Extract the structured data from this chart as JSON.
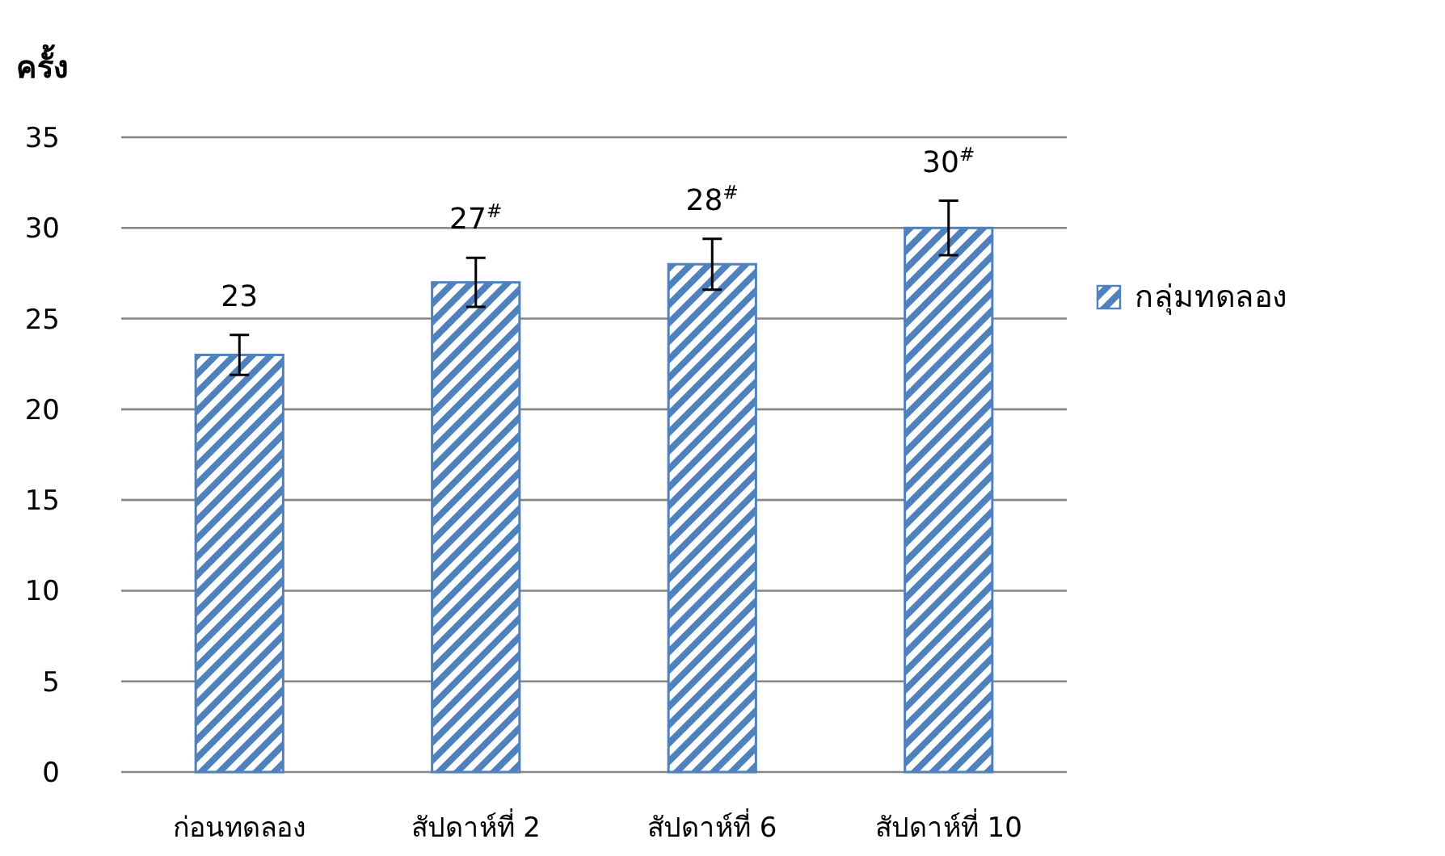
{
  "chart_data": {
    "type": "bar",
    "ylabel": "ครั้ง",
    "categories": [
      "ก่อนทดลอง",
      "สัปดาห์ที่ 2",
      "สัปดาห์ที่ 6",
      "สัปดาห์ที่ 10"
    ],
    "series": [
      {
        "name": "กลุ่มทดลอง",
        "color": "#4f81bd",
        "values": [
          23,
          27,
          28,
          30
        ],
        "errors": [
          1.1,
          1.35,
          1.4,
          1.5
        ],
        "value_labels": [
          "23",
          "27$^{#}$",
          "28$^{#}$",
          "30$^{#}$"
        ]
      }
    ],
    "ylim": [
      0,
      35
    ],
    "yticks": [
      0,
      5,
      10,
      15,
      20,
      25,
      30,
      35
    ],
    "grid": "y",
    "legend": "right"
  }
}
